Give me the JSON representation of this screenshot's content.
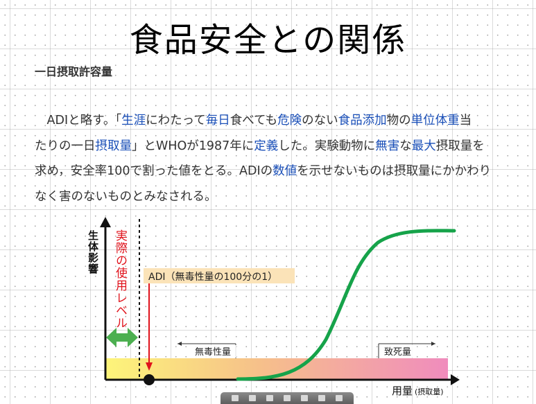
{
  "title": "食品安全との関係",
  "subheading": "一日摂取許容量",
  "paragraph": {
    "lines": [
      [
        {
          "t": "　ADIと略す。「",
          "k": false
        },
        {
          "t": "生涯",
          "k": true
        },
        {
          "t": "にわたって",
          "k": false
        },
        {
          "t": "毎日",
          "k": true
        },
        {
          "t": "食べても",
          "k": false
        },
        {
          "t": "危険",
          "k": true
        },
        {
          "t": "のない",
          "k": false
        },
        {
          "t": "食品添加",
          "k": true
        },
        {
          "t": "物の",
          "k": false
        },
        {
          "t": "単位体重",
          "k": true
        },
        {
          "t": "当",
          "k": false
        }
      ],
      [
        {
          "t": "たりの一日",
          "k": false
        },
        {
          "t": "摂取量",
          "k": true
        },
        {
          "t": "」とWHOが1987年に",
          "k": false
        },
        {
          "t": "定義",
          "k": true
        },
        {
          "t": "した。実験動物に",
          "k": false
        },
        {
          "t": "無害",
          "k": true
        },
        {
          "t": "な",
          "k": false
        },
        {
          "t": "最大",
          "k": true
        },
        {
          "t": "摂取量を",
          "k": false
        }
      ],
      [
        {
          "t": "求め，安全率100で割った値をとる。ADIの",
          "k": false
        },
        {
          "t": "数値",
          "k": true
        },
        {
          "t": "を示せないものは摂取量にかかわり",
          "k": false
        }
      ],
      [
        {
          "t": "なく害のないものとみなされる。",
          "k": false
        }
      ]
    ]
  },
  "diagram": {
    "y_axis_label": "生体影響",
    "x_axis_label": "用量",
    "x_axis_sublabel": "(摂取量)",
    "actual_use_label": "実際の使用レベル",
    "adi_label": "ADI（無毒性量の100分の1）",
    "noael_label": "無毒性量",
    "lethal_label": "致死量",
    "colors": {
      "curve": "#16a34a",
      "red": "#e0121b",
      "arrow_green": "#4caf50",
      "adi_box": "#fbe3b8",
      "band_start": "#fdf57a",
      "band_mid": "#f6c08a",
      "band_end": "#f08cbd"
    }
  }
}
